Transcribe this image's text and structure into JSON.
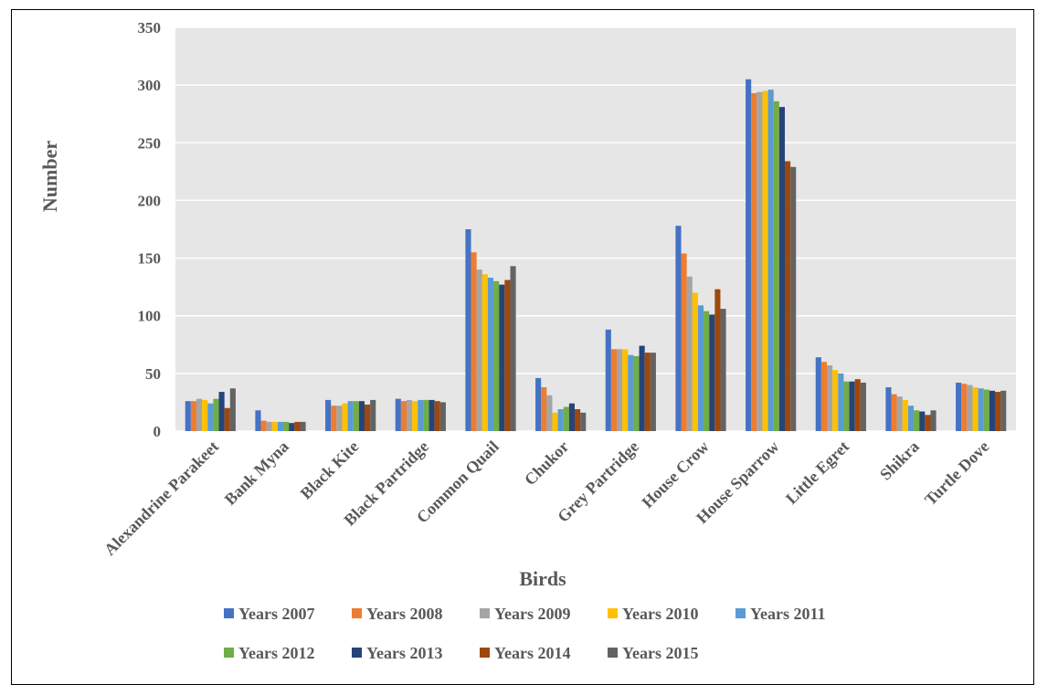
{
  "chart_data": {
    "type": "bar",
    "title": "",
    "xlabel": "Birds",
    "ylabel": "Number",
    "ylim": [
      0,
      350
    ],
    "yticks": [
      0,
      50,
      100,
      150,
      200,
      250,
      300,
      350
    ],
    "grid": true,
    "legend_position": "bottom",
    "categories": [
      "Alexandrine Parakeet",
      "Bank Myna",
      "Black Kite",
      "Black Partridge",
      "Common Quail",
      "Chukor",
      "Grey Partridge",
      "House Crow",
      "House Sparrow",
      "Little Egret",
      "Shikra",
      "Turtle Dove"
    ],
    "series": [
      {
        "name": "Years 2007",
        "color": "#4472C4",
        "values": [
          26,
          18,
          27,
          28,
          175,
          46,
          88,
          178,
          305,
          64,
          38,
          42
        ]
      },
      {
        "name": "Years 2008",
        "color": "#ED7D31",
        "values": [
          26,
          9,
          22,
          26,
          155,
          38,
          71,
          154,
          293,
          60,
          32,
          41
        ]
      },
      {
        "name": "Years 2009",
        "color": "#A5A5A5",
        "values": [
          28,
          8,
          22,
          27,
          140,
          31,
          71,
          134,
          294,
          57,
          30,
          40
        ]
      },
      {
        "name": "Years 2010",
        "color": "#FFC000",
        "values": [
          27,
          8,
          24,
          26,
          136,
          16,
          71,
          120,
          295,
          53,
          27,
          38
        ]
      },
      {
        "name": "Years 2011",
        "color": "#5B9BD5",
        "values": [
          24,
          8,
          26,
          27,
          133,
          19,
          66,
          109,
          296,
          50,
          22,
          37
        ]
      },
      {
        "name": "Years 2012",
        "color": "#70AD47",
        "values": [
          28,
          8,
          26,
          27,
          130,
          21,
          65,
          104,
          286,
          43,
          18,
          36
        ]
      },
      {
        "name": "Years 2013",
        "color": "#264478",
        "values": [
          34,
          7,
          26,
          27,
          127,
          24,
          74,
          101,
          281,
          43,
          17,
          35
        ]
      },
      {
        "name": "Years 2014",
        "color": "#9E480E",
        "values": [
          20,
          8,
          23,
          26,
          131,
          19,
          68,
          123,
          234,
          45,
          14,
          34
        ]
      },
      {
        "name": "Years 2015",
        "color": "#636363",
        "values": [
          37,
          8,
          27,
          25,
          143,
          16,
          68,
          106,
          229,
          42,
          18,
          35
        ]
      }
    ]
  }
}
